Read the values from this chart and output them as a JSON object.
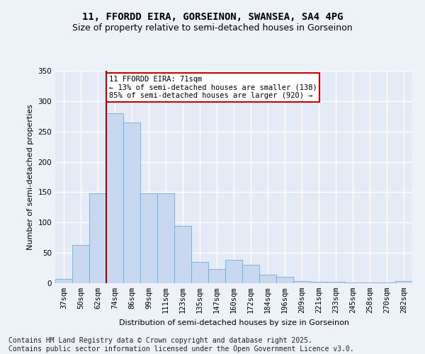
{
  "title_line1": "11, FFORDD EIRA, GORSEINON, SWANSEA, SA4 4PG",
  "title_line2": "Size of property relative to semi-detached houses in Gorseinon",
  "xlabel": "Distribution of semi-detached houses by size in Gorseinon",
  "ylabel": "Number of semi-detached properties",
  "categories": [
    "37sqm",
    "50sqm",
    "62sqm",
    "74sqm",
    "86sqm",
    "99sqm",
    "111sqm",
    "123sqm",
    "135sqm",
    "147sqm",
    "160sqm",
    "172sqm",
    "184sqm",
    "196sqm",
    "209sqm",
    "221sqm",
    "233sqm",
    "245sqm",
    "258sqm",
    "270sqm",
    "282sqm"
  ],
  "values": [
    7,
    63,
    148,
    280,
    265,
    148,
    148,
    95,
    35,
    23,
    38,
    30,
    14,
    10,
    4,
    2,
    2,
    1,
    1,
    1,
    3
  ],
  "bar_color": "#c8d8ef",
  "bar_edge_color": "#7aaad4",
  "vline_color": "#aa0000",
  "vline_x_index": 3,
  "annotation_text": "11 FFORDD EIRA: 71sqm\n← 13% of semi-detached houses are smaller (138)\n85% of semi-detached houses are larger (920) →",
  "annotation_box_facecolor": "#ffffff",
  "annotation_box_edgecolor": "#cc0000",
  "ylim": [
    0,
    350
  ],
  "yticks": [
    0,
    50,
    100,
    150,
    200,
    250,
    300,
    350
  ],
  "footer_text": "Contains HM Land Registry data © Crown copyright and database right 2025.\nContains public sector information licensed under the Open Government Licence v3.0.",
  "background_color": "#edf1f8",
  "plot_background_color": "#e4eaf6",
  "grid_color": "#ffffff",
  "title_fontsize": 10,
  "subtitle_fontsize": 9,
  "axis_label_fontsize": 8,
  "tick_fontsize": 7.5,
  "footer_fontsize": 7,
  "annot_fontsize": 7.5
}
